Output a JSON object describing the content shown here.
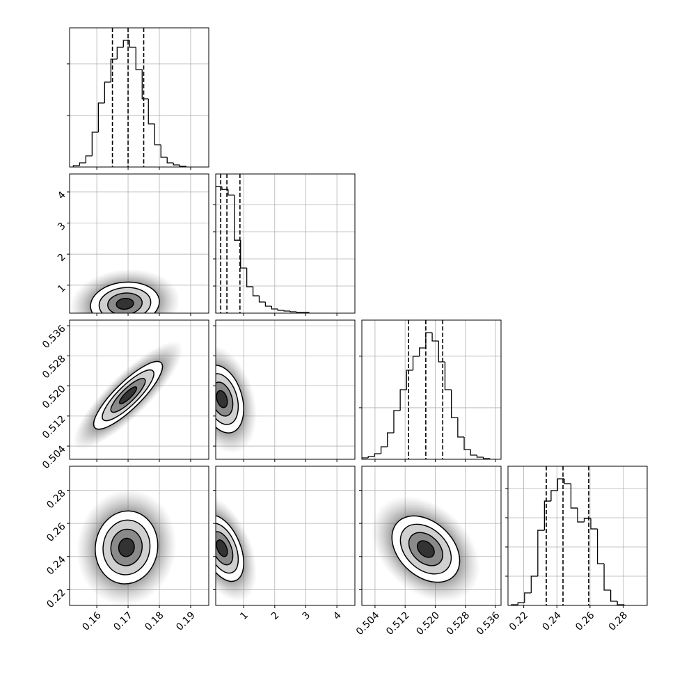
{
  "chart_data": {
    "type": "corner",
    "parameters": [
      {
        "lim": [
          0.1513,
          0.1958
        ],
        "ticks": [
          0.16,
          0.17,
          0.18,
          0.19
        ]
      },
      {
        "lim": [
          0.1,
          4.58
        ],
        "ticks": [
          1,
          2,
          3,
          4
        ]
      },
      {
        "lim": [
          0.5005,
          0.5375
        ],
        "ticks": [
          0.504,
          0.512,
          {
            "value": 0.52,
            "label": "0.520"
          },
          0.528,
          0.536
        ]
      },
      {
        "lim": [
          0.2105,
          0.2945
        ],
        "ticks": [
          0.22,
          0.24,
          0.26,
          0.28
        ]
      }
    ],
    "histograms": [
      {
        "bins": [
          0.1525,
          0.1545,
          0.1565,
          0.1585,
          0.1605,
          0.1625,
          0.1645,
          0.1665,
          0.1685,
          0.1705,
          0.1725,
          0.1745,
          0.1765,
          0.1785,
          0.1805,
          0.1825,
          0.1845,
          0.1865,
          0.1885
        ],
        "counts": [
          27,
          81,
          216,
          675,
          1242,
          1647,
          2093,
          2322,
          2457,
          2322,
          1890,
          1323,
          837,
          432,
          189,
          81,
          41,
          14
        ],
        "ylim": [
          0,
          2700
        ],
        "yticks": [
          1000,
          2000
        ],
        "quantiles": [
          0.165,
          0.17,
          0.175
        ]
      },
      {
        "bins": [
          0.1,
          0.3,
          0.5,
          0.7,
          0.9,
          1.1,
          1.3,
          1.5,
          1.7,
          1.9,
          2.1,
          2.3,
          2.5,
          2.7,
          2.9,
          3.1
        ],
        "counts": [
          4659,
          4557,
          4352,
          2688,
          1664,
          973,
          640,
          410,
          256,
          154,
          102,
          77,
          51,
          26,
          26
        ],
        "ylim": [
          0,
          5128
        ],
        "yticks": [
          1000,
          2000,
          3000,
          4000
        ],
        "quantiles": [
          0.26,
          0.46,
          0.88
        ]
      },
      {
        "bins": [
          0.5005,
          0.5022,
          0.5039,
          0.5056,
          0.5073,
          0.509,
          0.5107,
          0.5124,
          0.5141,
          0.5158,
          0.5175,
          0.5192,
          0.5209,
          0.5226,
          0.5243,
          0.526,
          0.5277,
          0.5294,
          0.5311,
          0.5328,
          0.5345
        ],
        "counts": [
          27,
          54,
          108,
          243,
          513,
          945,
          1350,
          1728,
          1998,
          2160,
          2457,
          2295,
          1890,
          1350,
          810,
          432,
          189,
          81,
          41,
          14
        ],
        "ylim": [
          0,
          2700
        ],
        "yticks": [
          1000,
          2000
        ],
        "quantiles": [
          0.5129,
          0.5175,
          0.522
        ]
      },
      {
        "bins": [
          0.2125,
          0.2165,
          0.2205,
          0.2245,
          0.2285,
          0.2325,
          0.2365,
          0.2405,
          0.2445,
          0.2485,
          0.2525,
          0.2565,
          0.2605,
          0.2645,
          0.2685,
          0.2725,
          0.2765,
          0.2805
        ],
        "counts": [
          24,
          95,
          428,
          1000,
          2570,
          3570,
          3927,
          4332,
          4165,
          3332,
          2856,
          2975,
          2618,
          1428,
          524,
          143,
          24
        ],
        "ylim": [
          0,
          4762
        ],
        "yticks": [
          1000,
          2000,
          3000,
          4000
        ],
        "quantiles": [
          0.2336,
          0.2437,
          0.2592
        ]
      }
    ],
    "pairs": [
      [
        {
          "center": [
            0.169,
            0.4
          ],
          "spread": [
            0.0055,
            0.35
          ],
          "corr": 0.1
        }
      ],
      [
        {
          "center": [
            0.17,
            0.5175
          ],
          "spread": [
            0.0055,
            0.0045
          ],
          "corr": 0.85
        },
        {
          "center": [
            0.3,
            0.5165
          ],
          "spread": [
            0.35,
            0.0045
          ],
          "corr": -0.3
        }
      ],
      [
        {
          "center": [
            0.1695,
            0.2455
          ],
          "spread": [
            0.005,
            0.011
          ],
          "corr": 0.05
        },
        {
          "center": [
            0.3,
            0.245
          ],
          "spread": [
            0.35,
            0.01
          ],
          "corr": -0.45
        },
        {
          "center": [
            0.5175,
            0.2445
          ],
          "spread": [
            0.0045,
            0.01
          ],
          "corr": -0.35
        }
      ]
    ]
  }
}
